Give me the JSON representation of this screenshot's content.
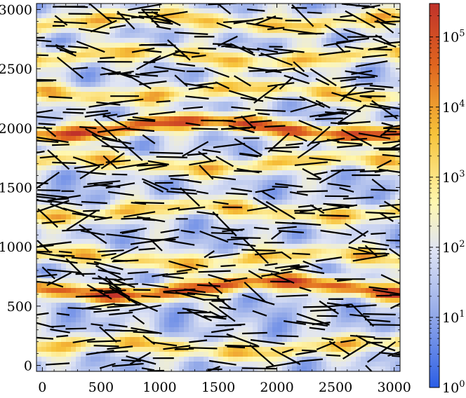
{
  "chart_data": {
    "type": "heatmap",
    "title": "",
    "xlabel": "",
    "ylabel": "",
    "xlim": [
      -50,
      3050
    ],
    "ylim": [
      -50,
      3050
    ],
    "x_ticks": [
      0,
      500,
      1000,
      1500,
      2000,
      2500,
      3000
    ],
    "y_ticks": [
      0,
      500,
      1000,
      1500,
      2000,
      2500,
      3000
    ],
    "x_tick_labels": [
      "0",
      "500",
      "1000",
      "1500",
      "2000",
      "2500",
      "3000"
    ],
    "y_tick_labels": [
      "0",
      "500",
      "1000",
      "1500",
      "2000",
      "2500",
      "3000"
    ],
    "colorbar": {
      "scale": "log",
      "range": [
        1,
        300000
      ],
      "ticks": [
        1,
        10,
        100,
        1000,
        10000,
        100000
      ],
      "tick_bases": [
        "10",
        "10",
        "10",
        "10",
        "10",
        "10"
      ],
      "tick_exponents": [
        "0",
        "1",
        "2",
        "3",
        "4",
        "5"
      ],
      "colors": [
        "#2b5ee6",
        "#8fa6e8",
        "#dfe4f4",
        "#fff7b0",
        "#f7c33a",
        "#e0651f",
        "#c0322a"
      ]
    },
    "high_density_bands_y": [
      650,
      2000
    ],
    "medium_density_bands_y": [
      150,
      900,
      1300,
      1700,
      2300,
      2600,
      2900
    ],
    "segment_color": "#000000",
    "grid": false,
    "legend": "none"
  }
}
